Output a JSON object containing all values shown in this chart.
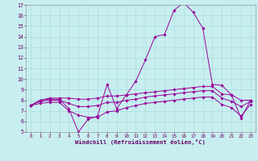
{
  "background_color": "#c8eef0",
  "grid_color": "#aadddd",
  "line_color": "#990099",
  "xlim": [
    -0.5,
    23.5
  ],
  "ylim": [
    5,
    17
  ],
  "xlabel": "Windchill (Refroidissement éolien,°C)",
  "xticks": [
    0,
    1,
    2,
    3,
    4,
    5,
    6,
    7,
    8,
    9,
    10,
    11,
    12,
    13,
    14,
    15,
    16,
    17,
    18,
    19,
    20,
    21,
    22,
    23
  ],
  "yticks": [
    5,
    6,
    7,
    8,
    9,
    10,
    11,
    12,
    13,
    14,
    15,
    16,
    17
  ],
  "series": [
    {
      "x": [
        0,
        1,
        2,
        3,
        4,
        5,
        6,
        7,
        8,
        9,
        10,
        11,
        12,
        13,
        14,
        15,
        16,
        17,
        18,
        19,
        20,
        21,
        22,
        23
      ],
      "y": [
        7.5,
        8.0,
        8.1,
        8.1,
        7.2,
        5.0,
        6.2,
        6.5,
        9.5,
        7.2,
        8.5,
        9.8,
        11.8,
        14.0,
        14.2,
        16.5,
        17.2,
        16.3,
        14.8,
        9.5,
        9.4,
        8.5,
        6.3,
        8.0
      ]
    },
    {
      "x": [
        0,
        1,
        2,
        3,
        4,
        5,
        6,
        7,
        8,
        9,
        10,
        11,
        12,
        13,
        14,
        15,
        16,
        17,
        18,
        19,
        20,
        21,
        22,
        23
      ],
      "y": [
        7.5,
        8.0,
        8.2,
        8.2,
        8.2,
        8.1,
        8.1,
        8.2,
        8.4,
        8.4,
        8.5,
        8.6,
        8.7,
        8.8,
        8.9,
        9.0,
        9.1,
        9.2,
        9.3,
        9.3,
        8.6,
        8.5,
        8.0,
        8.0
      ]
    },
    {
      "x": [
        0,
        1,
        2,
        3,
        4,
        5,
        6,
        7,
        8,
        9,
        10,
        11,
        12,
        13,
        14,
        15,
        16,
        17,
        18,
        19,
        20,
        21,
        22,
        23
      ],
      "y": [
        7.5,
        7.9,
        8.0,
        8.0,
        7.7,
        7.4,
        7.4,
        7.5,
        7.8,
        7.8,
        8.0,
        8.1,
        8.3,
        8.4,
        8.5,
        8.6,
        8.7,
        8.8,
        8.9,
        8.9,
        8.2,
        7.9,
        7.4,
        7.9
      ]
    },
    {
      "x": [
        0,
        1,
        2,
        3,
        4,
        5,
        6,
        7,
        8,
        9,
        10,
        11,
        12,
        13,
        14,
        15,
        16,
        17,
        18,
        19,
        20,
        21,
        22,
        23
      ],
      "y": [
        7.5,
        7.7,
        7.8,
        7.8,
        7.0,
        6.6,
        6.4,
        6.4,
        6.9,
        7.0,
        7.3,
        7.5,
        7.7,
        7.8,
        7.9,
        8.0,
        8.1,
        8.2,
        8.3,
        8.3,
        7.6,
        7.3,
        6.5,
        7.6
      ]
    }
  ]
}
